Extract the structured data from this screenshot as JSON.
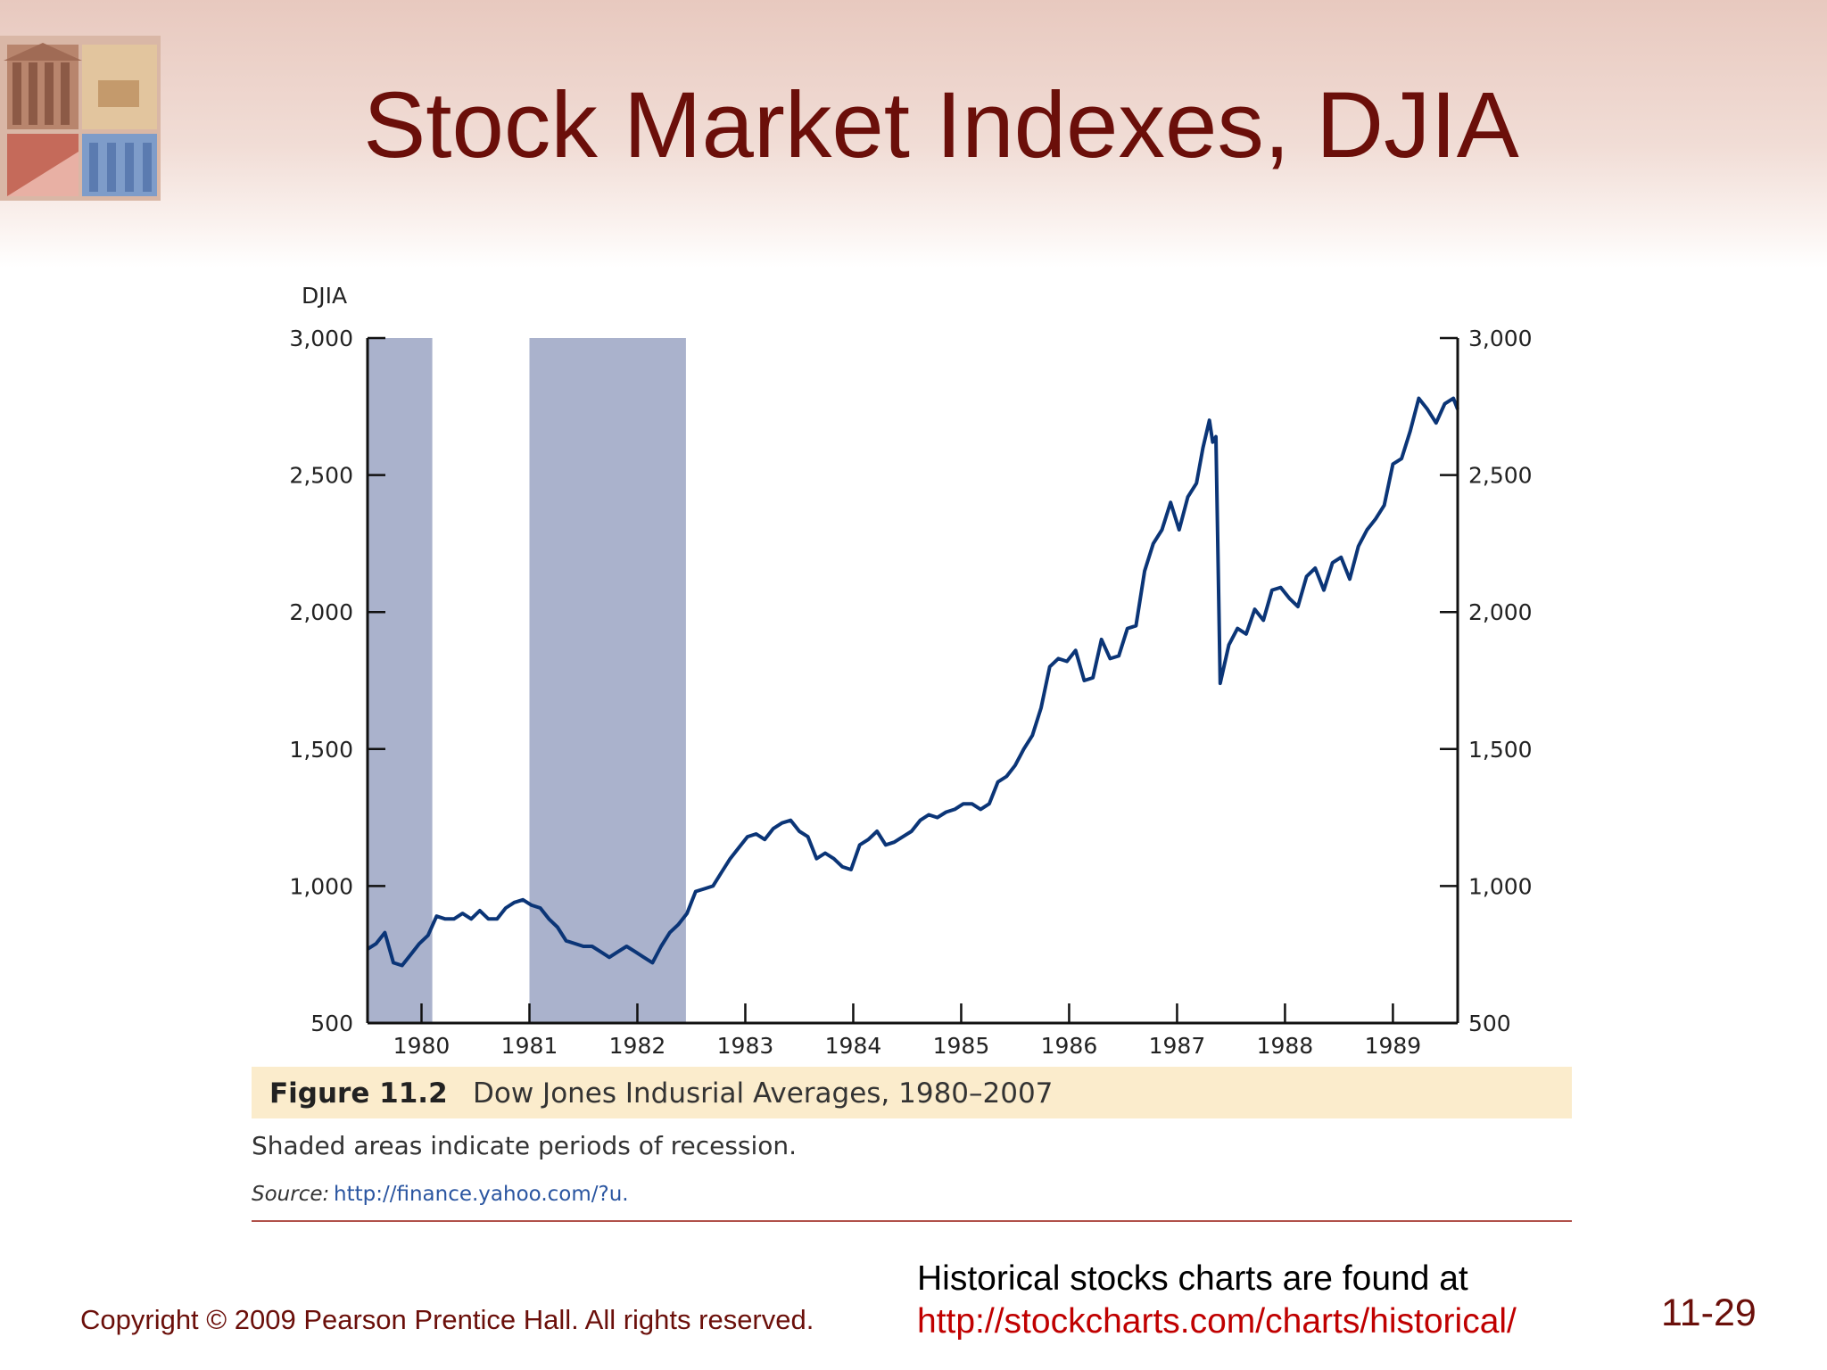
{
  "slide": {
    "title": "Stock Market Indexes, DJIA",
    "slide_number": "11-29",
    "copyright": "Copyright © 2009 Pearson Prentice Hall. All rights reserved.",
    "footer_text": "Historical stocks charts are found at",
    "footer_link": "http://stockcharts.com/charts/historical/",
    "colors": {
      "title": "#6b0f0a",
      "link": "#c00000",
      "header_band": "#e8c9bf"
    }
  },
  "figure": {
    "label": "Figure 11.2",
    "title": "Dow Jones Indusrial Averages, 1980–2007",
    "note": "Shaded areas indicate periods of recession.",
    "source_label": "Source:",
    "source_url": "http://finance.yahoo.com/?u."
  },
  "chart_data": {
    "type": "line",
    "title": "",
    "ylabel": "DJIA",
    "xlabel": "",
    "xlim": [
      1979.5,
      1989.6
    ],
    "ylim": [
      500,
      3000
    ],
    "x_ticks": [
      "1980",
      "1981",
      "1982",
      "1983",
      "1984",
      "1985",
      "1986",
      "1987",
      "1988",
      "1989"
    ],
    "y_ticks": [
      "500",
      "1,000",
      "1,500",
      "2,000",
      "2,500",
      "3,000"
    ],
    "y_tick_values": [
      500,
      1000,
      1500,
      2000,
      2500,
      3000
    ],
    "grid": false,
    "axes": "left and right y axes",
    "line_color": "#0b3577",
    "shade_color": "#aab2cc",
    "recessions": [
      [
        1979.5,
        1980.1
      ],
      [
        1981.0,
        1982.45
      ]
    ],
    "series": [
      {
        "x": [
          1979.5,
          1979.58,
          1979.66,
          1979.74,
          1979.82,
          1979.9,
          1979.98,
          1980.06,
          1980.14,
          1980.22,
          1980.3,
          1980.38,
          1980.46,
          1980.54,
          1980.62,
          1980.7,
          1980.78,
          1980.86,
          1980.94,
          1981.02,
          1981.1,
          1981.18,
          1981.26,
          1981.34,
          1981.42,
          1981.5,
          1981.58,
          1981.66,
          1981.74,
          1981.82,
          1981.9,
          1981.98,
          1982.06,
          1982.14,
          1982.22,
          1982.3,
          1982.38,
          1982.46,
          1982.54,
          1982.62,
          1982.7,
          1982.78,
          1982.86,
          1982.94,
          1983.02,
          1983.1,
          1983.18,
          1983.26,
          1983.34,
          1983.42,
          1983.5,
          1983.58,
          1983.66,
          1983.74,
          1983.82,
          1983.9,
          1983.98,
          1984.06,
          1984.14,
          1984.22,
          1984.3,
          1984.38,
          1984.46,
          1984.54,
          1984.62,
          1984.7,
          1984.78,
          1984.86,
          1984.94,
          1985.02,
          1985.1,
          1985.18,
          1985.26,
          1985.34,
          1985.42,
          1985.5,
          1985.58,
          1985.66,
          1985.74,
          1985.82,
          1985.9,
          1985.98,
          1986.06,
          1986.14,
          1986.22,
          1986.3,
          1986.38,
          1986.46,
          1986.54,
          1986.62,
          1986.7,
          1986.78,
          1986.86,
          1986.94,
          1987.02,
          1987.1,
          1987.18,
          1987.24,
          1987.3,
          1987.33,
          1987.36,
          1987.4,
          1987.48,
          1987.56,
          1987.64,
          1987.72,
          1987.8,
          1987.88,
          1987.96,
          1988.04,
          1988.12,
          1988.2,
          1988.28,
          1988.36,
          1988.44,
          1988.52,
          1988.6,
          1988.68,
          1988.76,
          1988.84,
          1988.92,
          1989.0,
          1989.08,
          1989.16,
          1989.24,
          1989.32,
          1989.4,
          1989.48,
          1989.56,
          1989.6
        ],
        "y": [
          770,
          790,
          830,
          720,
          710,
          750,
          790,
          820,
          890,
          880,
          880,
          900,
          880,
          910,
          880,
          880,
          920,
          940,
          950,
          930,
          920,
          880,
          850,
          800,
          790,
          780,
          780,
          760,
          740,
          760,
          780,
          760,
          740,
          720,
          780,
          830,
          860,
          900,
          980,
          990,
          1000,
          1050,
          1100,
          1140,
          1180,
          1190,
          1170,
          1210,
          1230,
          1240,
          1200,
          1180,
          1100,
          1120,
          1100,
          1070,
          1060,
          1150,
          1170,
          1200,
          1150,
          1160,
          1180,
          1200,
          1240,
          1260,
          1250,
          1270,
          1280,
          1300,
          1300,
          1280,
          1300,
          1380,
          1400,
          1440,
          1500,
          1550,
          1650,
          1800,
          1830,
          1820,
          1860,
          1750,
          1760,
          1900,
          1830,
          1840,
          1940,
          1950,
          2150,
          2250,
          2300,
          2400,
          2300,
          2420,
          2470,
          2600,
          2700,
          2620,
          2640,
          1740,
          1880,
          1940,
          1920,
          2010,
          1970,
          2080,
          2090,
          2050,
          2020,
          2130,
          2160,
          2080,
          2180,
          2200,
          2120,
          2240,
          2300,
          2340,
          2390,
          2540,
          2560,
          2660,
          2780,
          2740,
          2690,
          2760,
          2780,
          2740
        ]
      }
    ]
  }
}
